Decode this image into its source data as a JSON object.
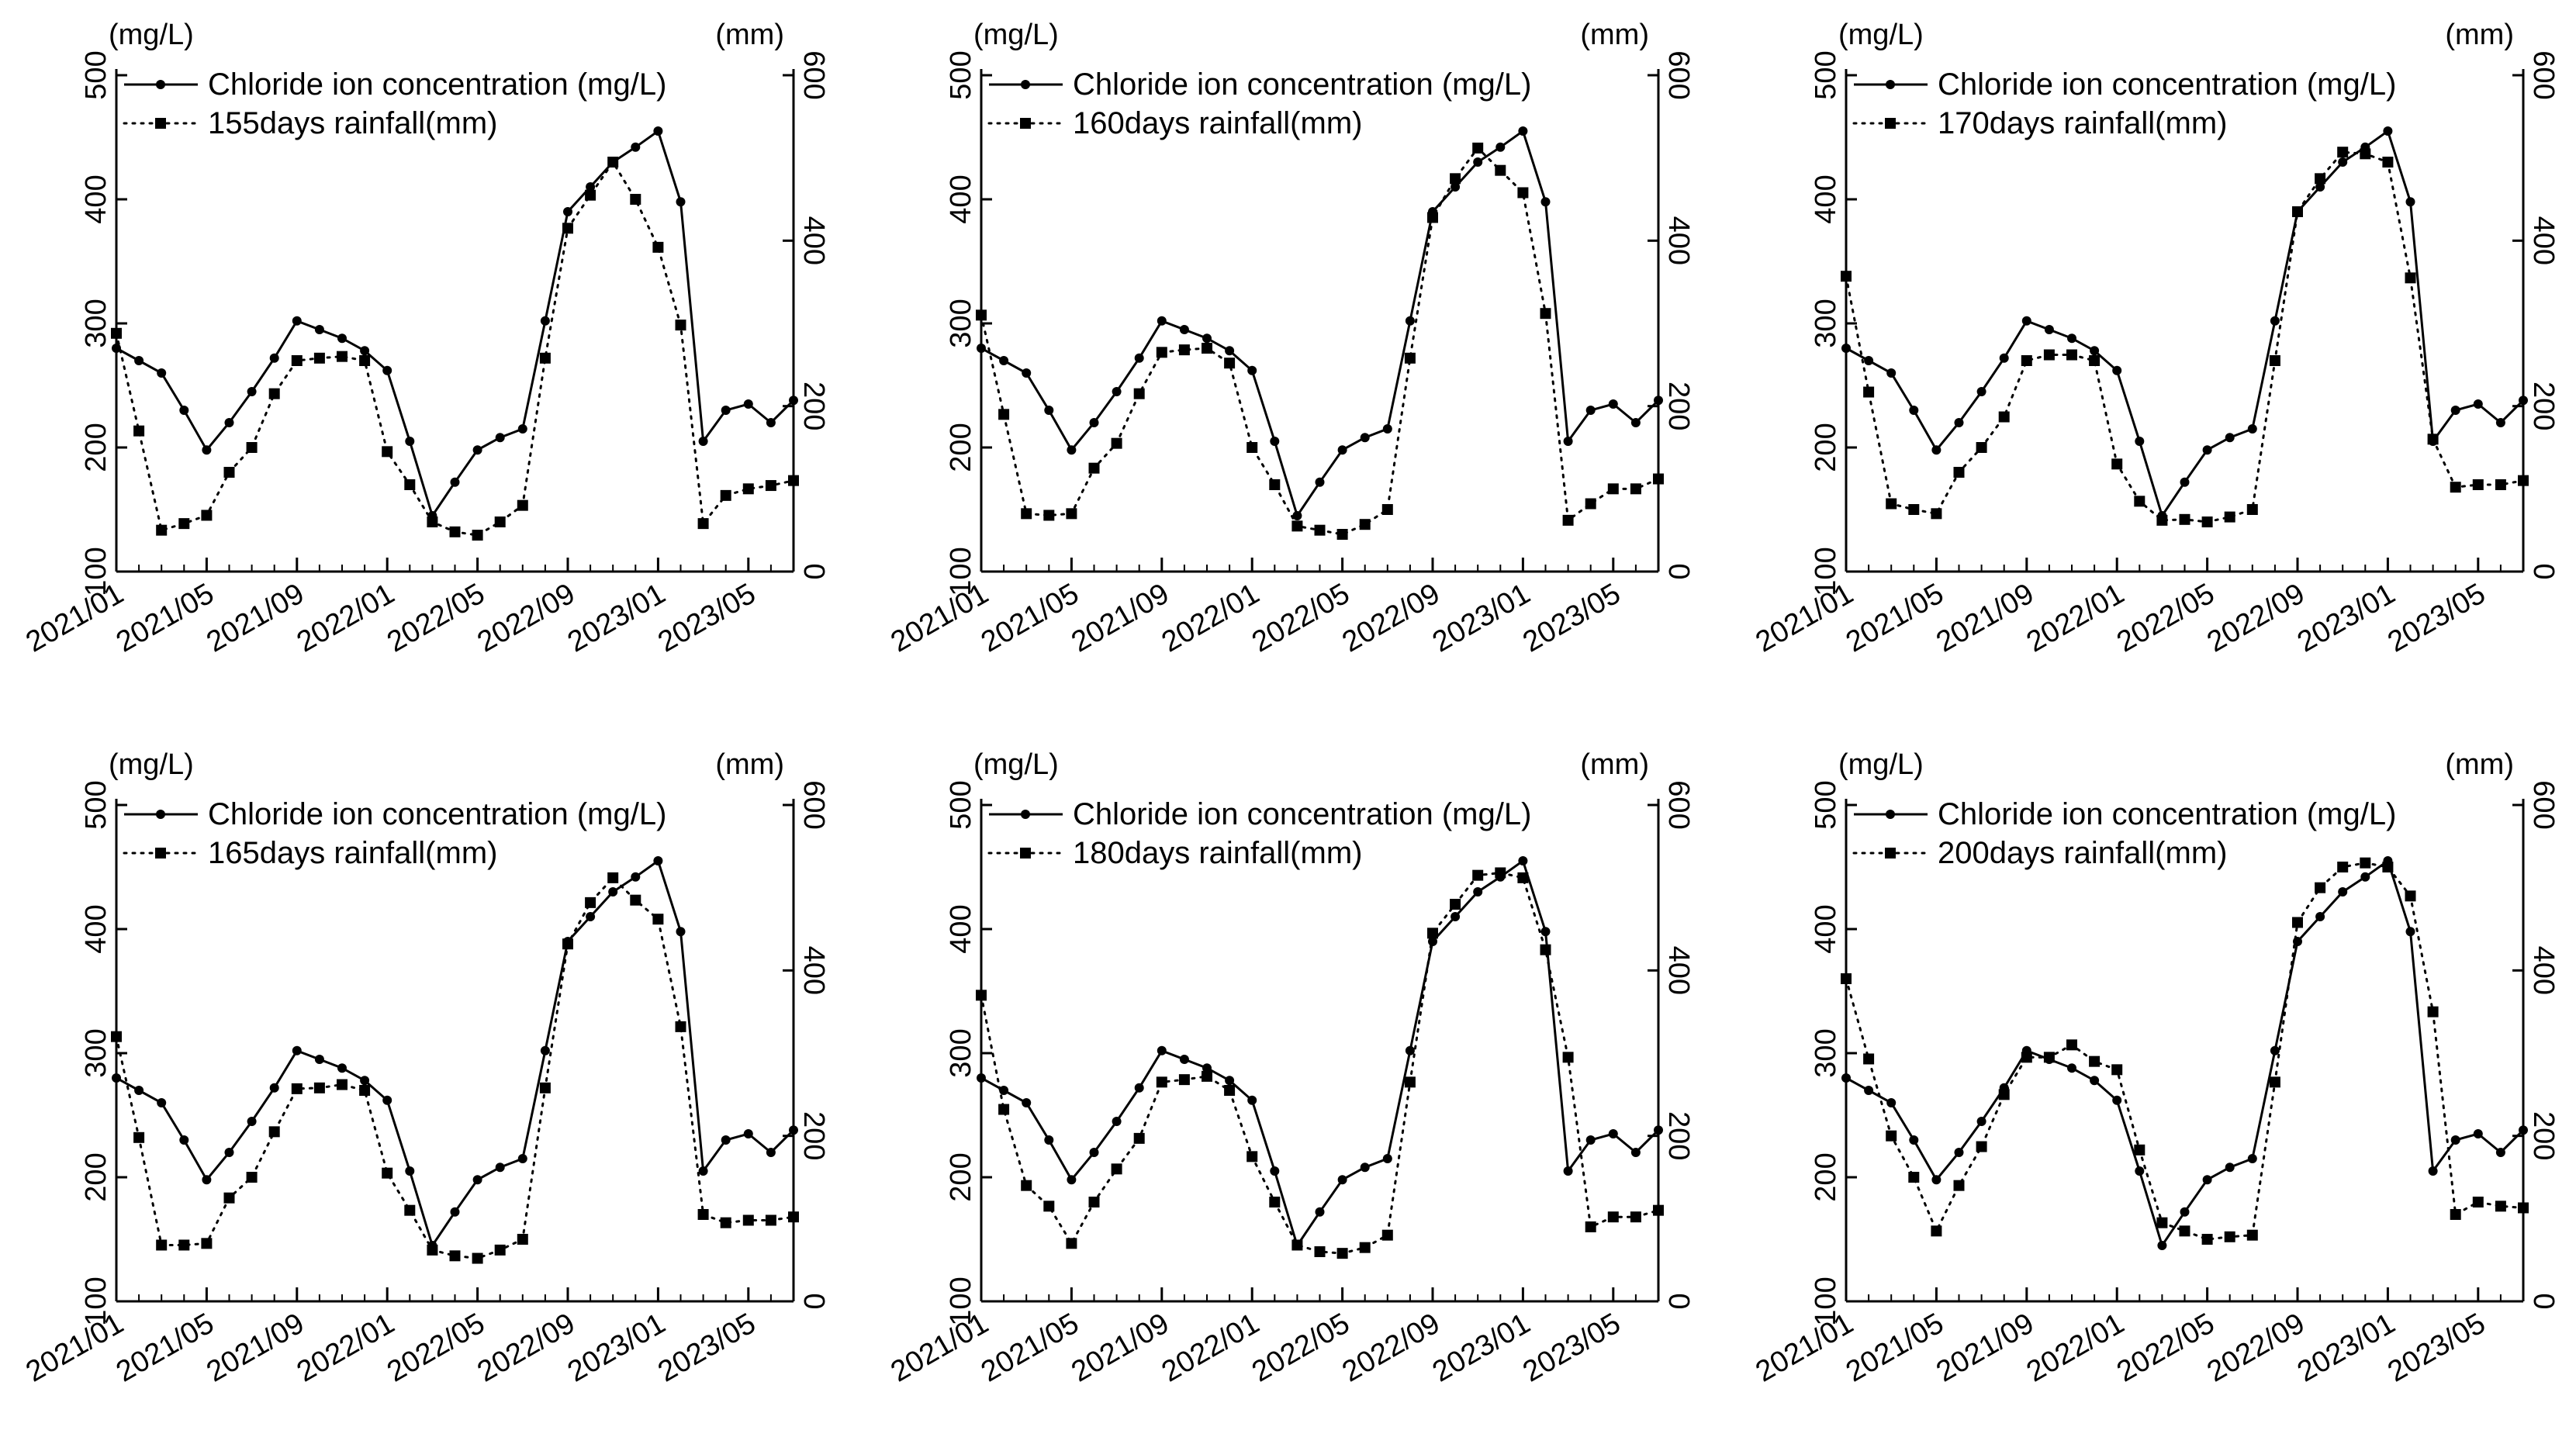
{
  "colors": {
    "ink": "#000000",
    "background": "#ffffff"
  },
  "shared": {
    "x": [
      "2021/01",
      "2021/02",
      "2021/03",
      "2021/04",
      "2021/05",
      "2021/06",
      "2021/07",
      "2021/08",
      "2021/09",
      "2021/10",
      "2021/11",
      "2021/12",
      "2022/01",
      "2022/02",
      "2022/03",
      "2022/04",
      "2022/05",
      "2022/06",
      "2022/07",
      "2022/08",
      "2022/09",
      "2022/10",
      "2022/11",
      "2022/12",
      "2023/01",
      "2023/02",
      "2023/03",
      "2023/04",
      "2023/05",
      "2023/06",
      "2023/07"
    ],
    "xticks": [
      "2021/01",
      "2021/05",
      "2021/09",
      "2022/01",
      "2022/05",
      "2022/09",
      "2023/01",
      "2023/05"
    ],
    "left_ylabel": "(mg/L)",
    "right_ylabel": "(mm)",
    "left_ylim": [
      100,
      500
    ],
    "right_ylim": [
      0,
      600
    ],
    "left_yticks": [
      "100",
      "200",
      "300",
      "400",
      "500"
    ],
    "right_yticks": [
      "0",
      "200",
      "400",
      "600"
    ],
    "chloride_label": "Chloride ion concentration (mg/L)",
    "chloride": [
      280,
      270,
      260,
      230,
      198,
      220,
      245,
      272,
      302,
      295,
      288,
      278,
      262,
      205,
      145,
      172,
      198,
      208,
      215,
      302,
      390,
      410,
      430,
      442,
      455,
      398,
      205,
      230,
      235,
      220,
      238
    ]
  },
  "chart_data": [
    {
      "type": "line",
      "title": "",
      "series": [
        {
          "name": "Chloride ion concentration (mg/L)",
          "axis": "left",
          "style": "solid-circle",
          "values": [
            280,
            270,
            260,
            230,
            198,
            220,
            245,
            272,
            302,
            295,
            288,
            278,
            262,
            205,
            145,
            172,
            198,
            208,
            215,
            302,
            390,
            410,
            430,
            442,
            455,
            398,
            205,
            230,
            235,
            220,
            238
          ]
        },
        {
          "name": "155days rainfall(mm)",
          "axis": "right",
          "style": "dotted-square",
          "values": [
            288,
            170,
            50,
            58,
            68,
            120,
            150,
            215,
            255,
            258,
            260,
            255,
            145,
            105,
            60,
            48,
            44,
            60,
            80,
            258,
            415,
            455,
            495,
            450,
            392,
            298,
            58,
            92,
            100,
            104,
            110
          ]
        }
      ]
    },
    {
      "type": "line",
      "title": "",
      "series": [
        {
          "name": "Chloride ion concentration (mg/L)",
          "axis": "left",
          "style": "solid-circle",
          "values": [
            280,
            270,
            260,
            230,
            198,
            220,
            245,
            272,
            302,
            295,
            288,
            278,
            262,
            205,
            145,
            172,
            198,
            208,
            215,
            302,
            390,
            410,
            430,
            442,
            455,
            398,
            205,
            230,
            235,
            220,
            238
          ]
        },
        {
          "name": "160days rainfall(mm)",
          "axis": "right",
          "style": "dotted-square",
          "values": [
            310,
            190,
            70,
            68,
            70,
            125,
            155,
            215,
            265,
            268,
            270,
            252,
            150,
            105,
            55,
            50,
            45,
            57,
            75,
            258,
            428,
            475,
            512,
            485,
            458,
            312,
            62,
            82,
            100,
            100,
            112
          ]
        }
      ]
    },
    {
      "type": "line",
      "title": "",
      "series": [
        {
          "name": "170days rainfall(mm)",
          "axis": "right",
          "style": "dotted-square",
          "values": [
            357,
            217,
            82,
            75,
            70,
            120,
            150,
            187,
            255,
            262,
            262,
            255,
            130,
            85,
            62,
            63,
            60,
            66,
            75,
            255,
            435,
            475,
            507,
            505,
            495,
            355,
            160,
            102,
            105,
            105,
            110
          ]
        }
      ]
    },
    {
      "type": "line",
      "title": "",
      "series": [
        {
          "name": "165days rainfall(mm)",
          "axis": "right",
          "style": "dotted-square",
          "values": [
            320,
            198,
            68,
            68,
            70,
            125,
            150,
            205,
            257,
            258,
            262,
            255,
            155,
            110,
            62,
            55,
            52,
            62,
            75,
            258,
            432,
            482,
            512,
            485,
            462,
            332,
            105,
            95,
            98,
            98,
            102
          ]
        }
      ]
    },
    {
      "type": "line",
      "title": "",
      "series": [
        {
          "name": "180days rainfall(mm)",
          "axis": "right",
          "style": "dotted-square",
          "values": [
            370,
            232,
            140,
            115,
            70,
            120,
            160,
            197,
            265,
            268,
            272,
            255,
            175,
            120,
            68,
            60,
            58,
            65,
            80,
            265,
            445,
            480,
            515,
            518,
            512,
            425,
            295,
            90,
            102,
            102,
            110
          ]
        }
      ]
    },
    {
      "type": "line",
      "title": "",
      "series": [
        {
          "name": "200days rainfall(mm)",
          "axis": "right",
          "style": "dotted-square",
          "values": [
            390,
            293,
            200,
            150,
            85,
            140,
            187,
            250,
            295,
            295,
            310,
            290,
            280,
            183,
            95,
            85,
            75,
            78,
            80,
            265,
            458,
            500,
            525,
            530,
            525,
            490,
            350,
            105,
            120,
            115,
            113
          ]
        }
      ]
    }
  ]
}
